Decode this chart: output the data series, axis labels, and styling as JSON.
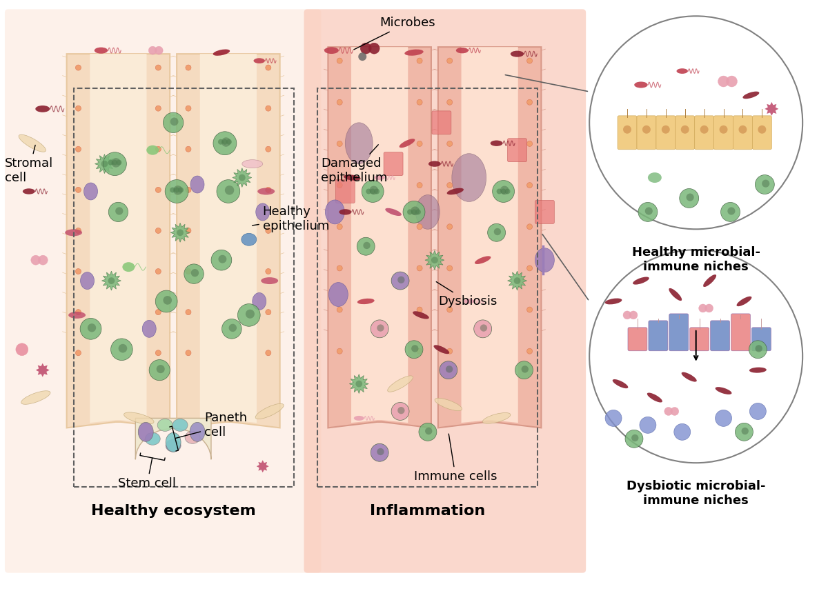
{
  "bg_color": "#ffffff",
  "healthy_bg": "#fde8dc",
  "inflam_bg": "#f9c8b8",
  "villi_color": "#f5dbc0",
  "villi_inner": "#faebd7",
  "villi_border": "#e8c8a0",
  "epithelium_color": "#f0c890",
  "stem_cell_colors": [
    "#7ec8c8",
    "#9b8fc4",
    "#e8b4b8",
    "#a8d8a8"
  ],
  "paneth_color": "#8b6090",
  "green_cell": "#7ab87a",
  "purple_cell": "#9b7db8",
  "red_bacteria": "#c04050",
  "pink_bacteria": "#e8a0b0",
  "dark_red_bacteria": "#8b2030",
  "labels": {
    "microbes": "Microbes",
    "healthy_epithelium": "Healthy\nepithelium",
    "damaged_epithelium": "Damaged\nepithelium",
    "dysbiosis": "Dysbiosis",
    "stromal_cell": "Stromal\ncell",
    "paneth_cell": "Paneth\ncell",
    "stem_cell": "Stem cell",
    "immune_cells": "Immune cells",
    "healthy_ecosystem": "Healthy ecosystem",
    "inflammation": "Inflammation",
    "healthy_niche": "Healthy microbial-\nimmune niches",
    "dysbiotic_niche": "Dysbiotic microbial-\nimmune niches"
  },
  "label_fontsize": 13,
  "title_fontsize": 16
}
